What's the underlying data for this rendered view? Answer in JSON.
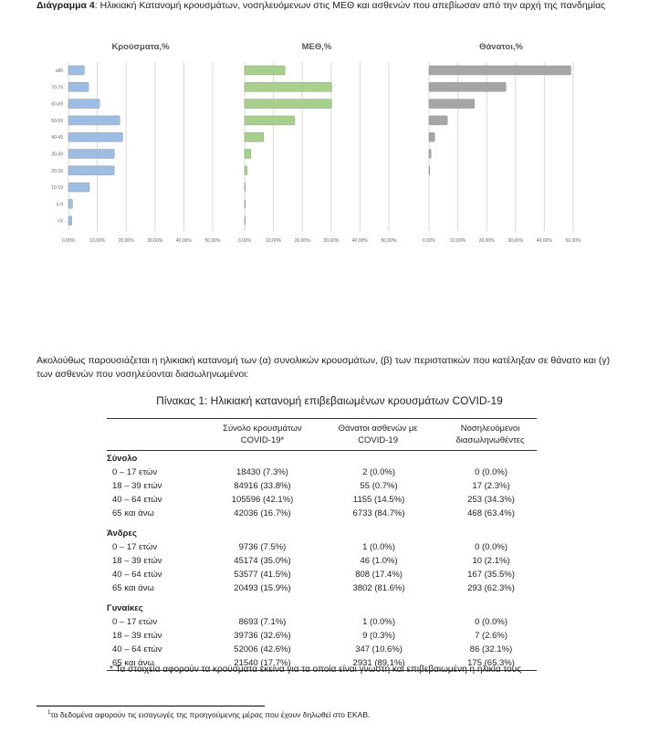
{
  "caption": {
    "label": "Διάγραμμα 4",
    "text": ": Ηλικιακή Κατανομή κρουσμάτων, νοσηλευόμενων στις ΜΕΘ και ασθενών που απεβίωσαν από την αρχή της πανδημίας"
  },
  "chart_data": [
    {
      "type": "bar",
      "title": "Κρούσματα,%",
      "categories": [
        "≥80",
        "70-79",
        "60-69",
        "50-59",
        "40-49",
        "30-39",
        "20-29",
        "10-19",
        "5-9",
        "<5"
      ],
      "values": [
        5.5,
        7.0,
        10.8,
        17.8,
        18.8,
        15.9,
        15.9,
        7.3,
        1.4,
        1.2
      ],
      "xlim": [
        0,
        50
      ],
      "xticks": [
        "0,00%",
        "10,00%",
        "20,00%",
        "30,00%",
        "40,00%",
        "50,00%"
      ],
      "color": "#9dbde3"
    },
    {
      "type": "bar",
      "title": "ΜΕΘ,%",
      "categories": [
        "≥80",
        "70-79",
        "60-69",
        "50-59",
        "40-49",
        "30-39",
        "20-29",
        "10-19",
        "5-9",
        "<5"
      ],
      "values": [
        14.0,
        30.2,
        30.2,
        17.4,
        6.6,
        2.2,
        0.9,
        0.1,
        0.1,
        0.1
      ],
      "xlim": [
        0,
        50
      ],
      "xticks": [
        "0,00%",
        "10,00%",
        "20,00%",
        "30,00%",
        "40,00%",
        "50,00%"
      ],
      "color": "#a7d08c"
    },
    {
      "type": "bar",
      "title": "Θάνατοι,%",
      "categories": [
        "≥80",
        "70-79",
        "60-69",
        "50-59",
        "40-49",
        "30-39",
        "20-29",
        "10-19",
        "5-9",
        "<5"
      ],
      "values": [
        49.2,
        26.7,
        15.8,
        6.4,
        2.0,
        0.7,
        0.1,
        0,
        0,
        0
      ],
      "xlim": [
        0,
        50
      ],
      "xticks": [
        "0,00%",
        "10,00%",
        "20,00%",
        "30,00%",
        "40,00%",
        "50,00%"
      ],
      "color": "#a6a6a6"
    }
  ],
  "paragraph": "Ακολούθως παρουσιάζεται η ηλικιακή κατανομή των (α) συνολικών κρουσμάτων, (β) των περιστατικών που κατέληξαν σε θάνατο και (γ) των ασθενών που νοσηλεύονται διασωληνωμένοι:",
  "table_title": "Πίνακας 1: Ηλικιακή κατανομή επιβεβαιωμένων κρουσμάτων COVID-19",
  "table": {
    "headers": [
      "Σύνολο κρουσμάτων COVID-19*",
      "Θάνατοι ασθενών με COVID-19",
      "Νοσηλευόμενοι διασωληνωθέντες"
    ],
    "groups": [
      {
        "name": "Σύνολο",
        "rows": [
          [
            "0 – 17 ετών",
            "18430 (7.3%)",
            "2 (0.0%)",
            "0 (0.0%)"
          ],
          [
            "18 – 39 ετών",
            "84916 (33.8%)",
            "55 (0.7%)",
            "17 (2.3%)"
          ],
          [
            "40 – 64 ετών",
            "105596 (42.1%)",
            "1155 (14.5%)",
            "253 (34.3%)"
          ],
          [
            "65 και άνω",
            "42036 (16.7%)",
            "6733 (84.7%)",
            "468 (63.4%)"
          ]
        ]
      },
      {
        "name": "Άνδρες",
        "rows": [
          [
            "0 – 17 ετών",
            "9736 (7.5%)",
            "1 (0.0%)",
            "0 (0.0%)"
          ],
          [
            "18 – 39 ετών",
            "45174 (35.0%)",
            "46 (1.0%)",
            "10 (2.1%)"
          ],
          [
            "40 – 64 ετών",
            "53577 (41.5%)",
            "808 (17.4%)",
            "167 (35.5%)"
          ],
          [
            "65 και άνω",
            "20493 (15.9%)",
            "3802 (81.6%)",
            "293 (62.3%)"
          ]
        ]
      },
      {
        "name": "Γυναίκες",
        "rows": [
          [
            "0 – 17 ετών",
            "8693 (7.1%)",
            "1 (0.0%)",
            "0 (0.0%)"
          ],
          [
            "18 – 39 ετών",
            "39736 (32.6%)",
            "9 (0.3%)",
            "7 (2.6%)"
          ],
          [
            "40 – 64 ετών",
            "52006 (42.6%)",
            "347 (10.6%)",
            "86 (32.1%)"
          ],
          [
            "65 και άνω",
            "21540 (17.7%)",
            "2931 (89.1%)",
            "175 (65.3%)"
          ]
        ]
      }
    ]
  },
  "table_note": "* Τα στοιχεία αφορούν τα κρούσματα εκείνα για τα οποία είναι γνωστή και επιβεβαιωμένη η ηλικία τους",
  "footnote": {
    "mark": "1",
    "text": "τα δεδομένα αφορούν τις εισαγωγές της προηγούμενης μέρας που έχουν δηλωθεί στο ΕΚΑΒ."
  }
}
